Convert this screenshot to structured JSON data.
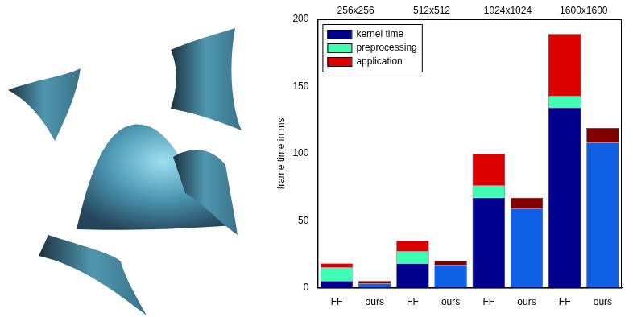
{
  "chart_data": {
    "type": "bar",
    "stacked": true,
    "categories": [
      "FF",
      "ours",
      "FF",
      "ours",
      "FF",
      "ours",
      "FF",
      "ours"
    ],
    "groups": [
      "256x256",
      "512x512",
      "1024x1024",
      "1600x1600"
    ],
    "y_label": "frame time in ms",
    "ylim": [
      0,
      200
    ],
    "yticks": [
      0,
      50,
      100,
      150,
      200
    ],
    "grid": false,
    "legend": "upper left",
    "series": [
      {
        "name": "kernel time",
        "colors": [
          "#00008f",
          "#1060e6",
          "#00008f",
          "#1060e6",
          "#00008f",
          "#1060e6",
          "#00008f",
          "#1060e6"
        ],
        "values": [
          5,
          3,
          18,
          17,
          67,
          59,
          134,
          108
        ]
      },
      {
        "name": "preprocessing",
        "colors": [
          "#40ffb4",
          "#40ffb4",
          "#40ffb4",
          "#40ffb4",
          "#40ffb4",
          "#40ffb4",
          "#40ffb4",
          "#40ffb4"
        ],
        "values": [
          10,
          0,
          9,
          0,
          9,
          0,
          9,
          0
        ]
      },
      {
        "name": "application",
        "colors": [
          "#dd0000",
          "#800000",
          "#dd0000",
          "#800000",
          "#dd0000",
          "#800000",
          "#dd0000",
          "#800000"
        ],
        "values": [
          3,
          2,
          8,
          3,
          24,
          8,
          46,
          11
        ]
      }
    ]
  }
}
